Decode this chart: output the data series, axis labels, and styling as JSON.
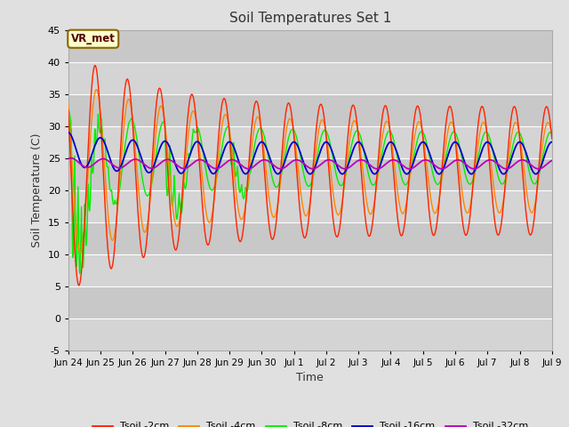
{
  "title": "Soil Temperatures Set 1",
  "xlabel": "Time",
  "ylabel": "Soil Temperature (C)",
  "ylim": [
    -5,
    45
  ],
  "bg_color": "#e0e0e0",
  "plot_bg_color": "#d8d8d8",
  "annotation_text": "VR_met",
  "annotation_bg": "#ffffcc",
  "annotation_border": "#886600",
  "line_colors": {
    "2cm": "#ff2200",
    "4cm": "#ff8800",
    "8cm": "#00ee00",
    "16cm": "#0000cc",
    "32cm": "#bb00bb"
  },
  "legend_labels": [
    "Tsoil -2cm",
    "Tsoil -4cm",
    "Tsoil -8cm",
    "Tsoil -16cm",
    "Tsoil -32cm"
  ],
  "xtick_labels": [
    "Jun 24",
    "Jun 25",
    "Jun 26",
    "Jun 27",
    "Jun 28",
    "Jun 29",
    "Jun 30",
    "Jul 1",
    "Jul 2",
    "Jul 3",
    "Jul 4",
    "Jul 5",
    "Jul 6",
    "Jul 7",
    "Jul 8",
    "Jul 9"
  ],
  "xtick_positions": [
    0,
    24,
    48,
    72,
    96,
    120,
    144,
    168,
    192,
    216,
    240,
    264,
    288,
    312,
    336,
    360
  ],
  "ytick_positions": [
    -5,
    0,
    5,
    10,
    15,
    20,
    25,
    30,
    35,
    40,
    45
  ]
}
